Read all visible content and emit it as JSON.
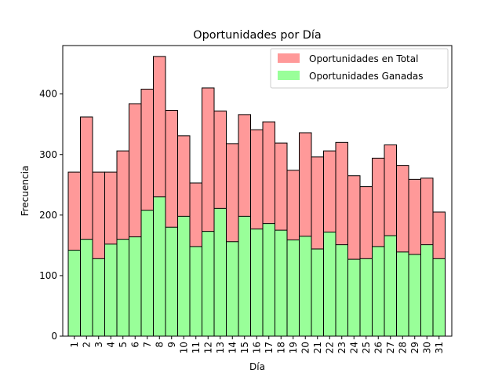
{
  "chart_data": {
    "type": "bar",
    "stacking": "overlay",
    "title": "Oportunidades por Día",
    "xlabel": "Día",
    "ylabel": "Frecuencia",
    "ylim": [
      0,
      480
    ],
    "y_ticks": [
      0,
      100,
      200,
      300,
      400
    ],
    "grid": false,
    "legend_position": "top-right",
    "categories": [
      "1",
      "2",
      "3",
      "4",
      "5",
      "6",
      "7",
      "8",
      "9",
      "10",
      "11",
      "12",
      "13",
      "14",
      "15",
      "16",
      "17",
      "18",
      "19",
      "20",
      "21",
      "22",
      "23",
      "24",
      "25",
      "26",
      "27",
      "28",
      "29",
      "30",
      "31"
    ],
    "series": [
      {
        "name": "Oportunidades en Total",
        "color": "#ff9999",
        "values": [
          271,
          362,
          271,
          271,
          306,
          384,
          408,
          462,
          373,
          331,
          253,
          410,
          372,
          318,
          366,
          341,
          354,
          319,
          274,
          336,
          296,
          306,
          320,
          265,
          247,
          294,
          316,
          282,
          259,
          261,
          205
        ]
      },
      {
        "name": "Oportunidades Ganadas",
        "color": "#99ff99",
        "values": [
          142,
          160,
          128,
          152,
          160,
          164,
          208,
          230,
          180,
          198,
          148,
          173,
          211,
          156,
          198,
          177,
          186,
          175,
          159,
          165,
          144,
          172,
          151,
          127,
          128,
          148,
          166,
          139,
          135,
          151,
          128
        ]
      }
    ]
  }
}
